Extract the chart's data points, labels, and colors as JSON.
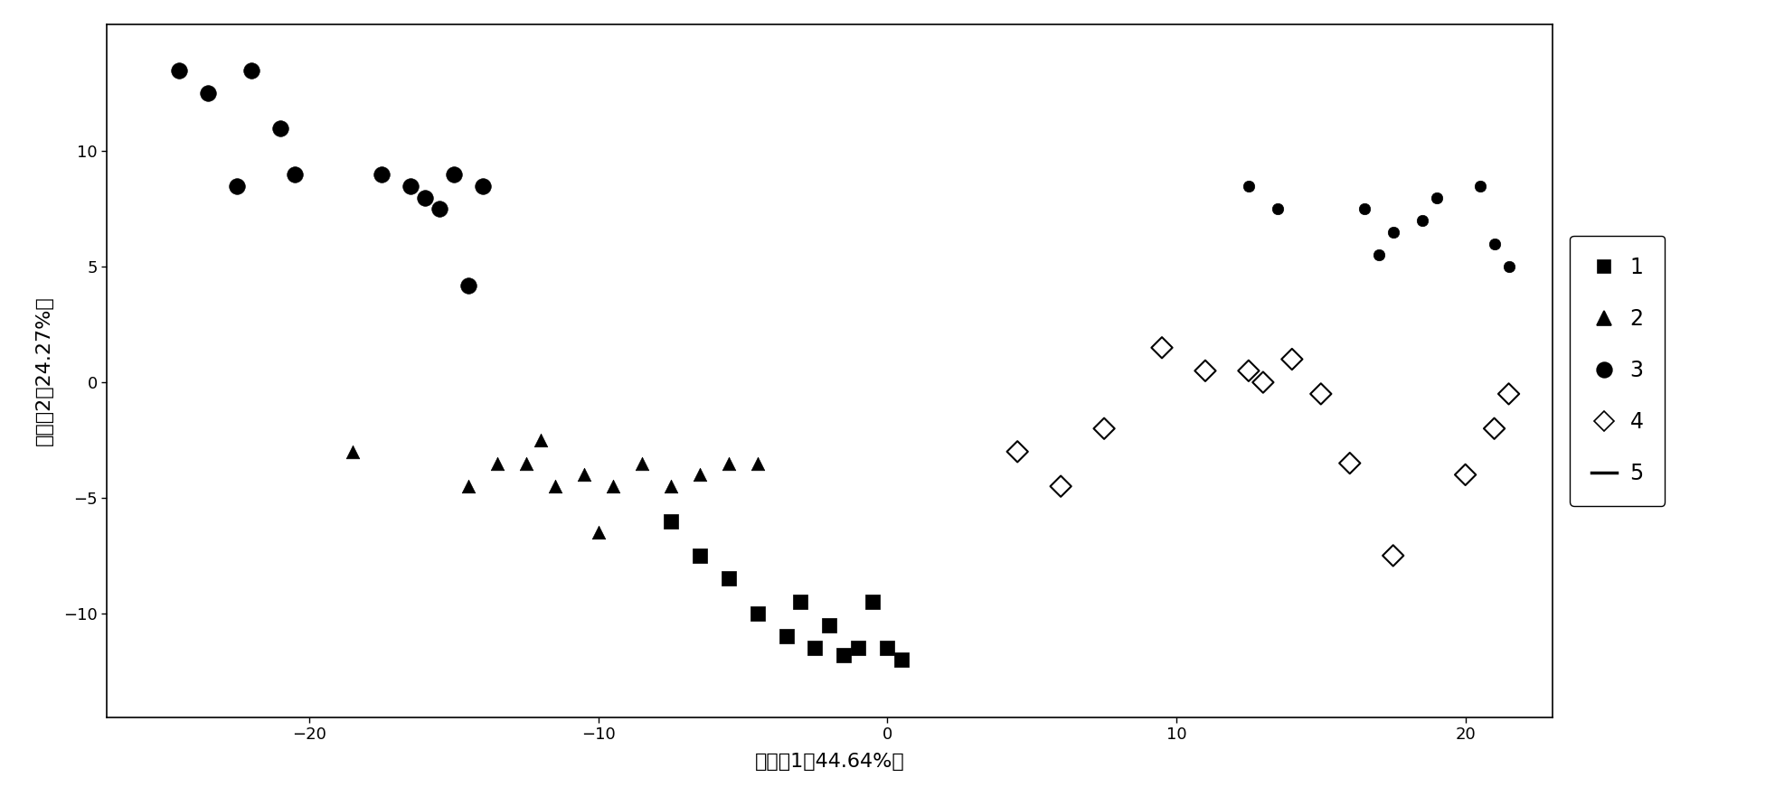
{
  "groups": {
    "1": {
      "label": "1",
      "marker": "s",
      "filled": true,
      "x": [
        -7.5,
        -6.5,
        -5.5,
        -4.5,
        -3.5,
        -3.0,
        -2.5,
        -2.0,
        -1.5,
        -1.0,
        -0.5,
        0.0,
        0.5
      ],
      "y": [
        -6.0,
        -7.5,
        -8.5,
        -10.0,
        -11.0,
        -9.5,
        -11.5,
        -10.5,
        -11.8,
        -11.5,
        -9.5,
        -11.5,
        -12.0
      ]
    },
    "2": {
      "label": "2",
      "marker": "^",
      "filled": true,
      "x": [
        -18.5,
        -14.5,
        -13.5,
        -12.5,
        -11.5,
        -10.5,
        -9.5,
        -8.5,
        -7.5,
        -6.5,
        -5.5,
        -4.5,
        -12.0,
        -10.0
      ],
      "y": [
        -3.0,
        -4.5,
        -3.5,
        -3.5,
        -4.5,
        -4.0,
        -4.5,
        -3.5,
        -4.5,
        -4.0,
        -3.5,
        -3.5,
        -2.5,
        -6.5
      ]
    },
    "3": {
      "label": "3",
      "marker": "o",
      "filled": true,
      "x": [
        -24.5,
        -23.5,
        -22.0,
        -22.5,
        -21.0,
        -20.5,
        -17.5,
        -16.5,
        -16.0,
        -15.5,
        -15.0,
        -14.5,
        -14.0
      ],
      "y": [
        13.5,
        12.5,
        13.5,
        8.5,
        11.0,
        9.0,
        9.0,
        8.5,
        8.0,
        7.5,
        9.0,
        4.2,
        8.5
      ]
    },
    "4": {
      "label": "4",
      "marker": "D",
      "filled": false,
      "x": [
        4.5,
        6.0,
        7.5,
        9.5,
        11.0,
        12.5,
        13.0,
        14.0,
        15.0,
        16.0,
        17.5,
        20.0,
        21.0,
        21.5
      ],
      "y": [
        -3.0,
        -4.5,
        -2.0,
        1.5,
        0.5,
        0.5,
        0.0,
        1.0,
        -0.5,
        -3.5,
        -7.5,
        -4.0,
        -2.0,
        -0.5
      ]
    },
    "5": {
      "label": "5",
      "marker": "o",
      "filled": true,
      "x": [
        12.5,
        13.5,
        16.5,
        17.5,
        18.5,
        19.0,
        20.5,
        21.0,
        21.5,
        17.0
      ],
      "y": [
        8.5,
        7.5,
        7.5,
        6.5,
        7.0,
        8.0,
        8.5,
        6.0,
        5.0,
        5.5
      ]
    }
  },
  "xlabel": "主成劆1（44.64%）",
  "ylabel": "主成劆2（24.27%）",
  "xlim": [
    -27,
    23
  ],
  "ylim": [
    -14.5,
    15.5
  ],
  "xticks": [
    -20,
    -10,
    0,
    10,
    20
  ],
  "yticks": [
    -10,
    -5,
    0,
    5,
    10
  ],
  "background_color": "#ffffff"
}
